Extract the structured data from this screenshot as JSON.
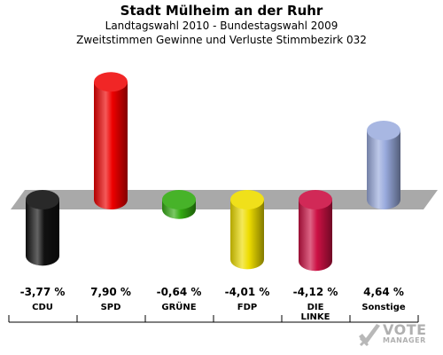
{
  "header": {
    "title": "Stadt Mülheim an der Ruhr",
    "subtitle_line1": "Landtagswahl 2010 - Bundestagswahl 2009",
    "subtitle_line2": "Zweitstimmen Gewinne und Verluste Stimmbezirk 032"
  },
  "logo": {
    "line1": "VOTE",
    "line2": "MANAGER"
  },
  "chart_data": {
    "type": "bar",
    "title": "Stadt Mülheim an der Ruhr",
    "categories": [
      "CDU",
      "SPD",
      "GRÜNE",
      "FDP",
      "DIE LINKE",
      "Sonstige"
    ],
    "values": [
      -3.77,
      7.9,
      -0.64,
      -4.01,
      -4.12,
      4.64
    ],
    "value_labels": [
      "-3,77 %",
      "7,90 %",
      "-0,64 %",
      "-4,01 %",
      "-4,12 %",
      "4,64 %"
    ],
    "colors": [
      "#111111",
      "#ee0000",
      "#33aa11",
      "#eedd00",
      "#cc1144",
      "#99aadd"
    ],
    "xlabel": "",
    "ylabel": "",
    "grid": false,
    "legend": "none"
  }
}
